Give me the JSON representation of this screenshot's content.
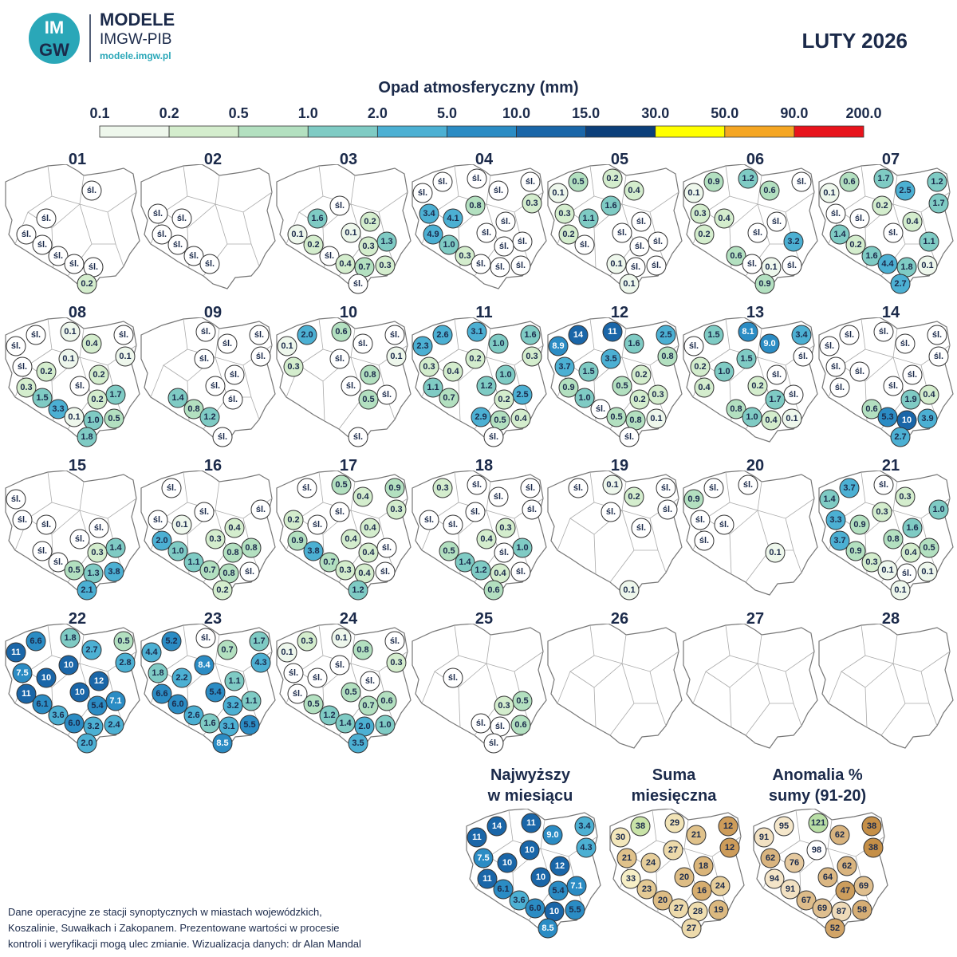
{
  "header": {
    "logo": [
      "IM",
      "GW"
    ],
    "brand": "MODELE",
    "org": "IMGW-PIB",
    "url": "modele.imgw.pl",
    "title": "LUTY 2026"
  },
  "legend": {
    "title": "Opad atmosferyczny (mm)",
    "labels": [
      "0.1",
      "0.2",
      "0.5",
      "1.0",
      "2.0",
      "5.0",
      "10.0",
      "15.0",
      "30.0",
      "50.0",
      "90.0",
      "200.0"
    ],
    "colors": [
      "#eef7ec",
      "#d4edcd",
      "#b3e0c0",
      "#7fcbc4",
      "#4cb0d3",
      "#2b8cc4",
      "#1a66a8",
      "#0c3f7a",
      "#ffff00",
      "#f5a623",
      "#e8141c"
    ]
  },
  "days": [
    {
      "label": "01",
      "stations": [
        null,
        null,
        null,
        null,
        "śl.",
        null,
        null,
        null,
        "śl.",
        null,
        "śl.",
        null,
        null,
        "śl.",
        null,
        "śl.",
        "śl.",
        "śl.",
        null,
        "0.2"
      ]
    },
    {
      "label": "02",
      "stations": [
        null,
        null,
        null,
        null,
        null,
        null,
        null,
        "śl.",
        "śl.",
        null,
        "śl.",
        null,
        null,
        "śl.",
        null,
        "śl.",
        "śl.",
        null,
        null,
        null
      ]
    },
    {
      "label": "03",
      "stations": [
        null,
        null,
        null,
        null,
        null,
        "śl.",
        null,
        null,
        "1.6",
        "0.2",
        "0.1",
        "0.1",
        "1.3",
        "0.2",
        "0.3",
        "śl.",
        "0.4",
        "0.7",
        "0.3",
        "śl."
      ]
    },
    {
      "label": "04",
      "stations": [
        "śl.",
        "śl.",
        "śl.",
        "śl.",
        "śl.",
        "0.8",
        "0.3",
        "3.4",
        "4.1",
        "śl.",
        "4.9",
        "śl.",
        "śl.",
        "1.0",
        "śl.",
        "0.3",
        "śl.",
        "śl.",
        "śl.",
        null
      ]
    },
    {
      "label": "05",
      "stations": [
        "0.5",
        "0.2",
        null,
        "0.1",
        "0.4",
        "1.6",
        null,
        "0.3",
        "1.1",
        "śl.",
        "0.2",
        "śl.",
        "śl.",
        "śl.",
        "śl.",
        null,
        "0.1",
        "śl.",
        "śl.",
        "0.1"
      ]
    },
    {
      "label": "06",
      "stations": [
        "0.9",
        "1.2",
        "śl.",
        "0.1",
        "0.6",
        null,
        null,
        "0.3",
        "0.4",
        "śl.",
        "0.2",
        "śl.",
        "3.2",
        null,
        null,
        "0.6",
        "śl.",
        "0.1",
        "śl.",
        "0.9"
      ]
    },
    {
      "label": "07",
      "stations": [
        "0.6",
        "1.7",
        "1.2",
        "0.1",
        "2.5",
        "0.2",
        "1.7",
        "śl.",
        "śl.",
        "0.4",
        "1.4",
        "śl.",
        "1.1",
        "0.2",
        null,
        "1.6",
        "4.4",
        "1.8",
        "0.1",
        "2.7"
      ]
    },
    {
      "label": "08",
      "stations": [
        "śl.",
        "0.1",
        "śl.",
        "śl.",
        "0.4",
        "0.1",
        "0.1",
        "śl.",
        "0.2",
        "0.2",
        "0.3",
        "śl.",
        "1.7",
        "1.5",
        "0.2",
        "3.3",
        "0.1",
        "1.0",
        "0.5",
        "1.8"
      ]
    },
    {
      "label": "09",
      "stations": [
        null,
        "śl.",
        "śl.",
        null,
        "śl.",
        "śl.",
        "śl.",
        null,
        null,
        "śl.",
        null,
        "śl.",
        null,
        "1.4",
        "śl.",
        "0.8",
        "1.2",
        null,
        null,
        "śl."
      ]
    },
    {
      "label": "10",
      "stations": [
        "2.0",
        "0.6",
        "śl.",
        "0.1",
        "śl.",
        "śl.",
        "0.1",
        "0.3",
        null,
        "0.8",
        null,
        "śl.",
        "śl.",
        null,
        "0.5",
        null,
        null,
        null,
        null,
        "śl."
      ]
    },
    {
      "label": "11",
      "stations": [
        "2.6",
        "3.1",
        "1.6",
        "2.3",
        "1.0",
        "0.2",
        "0.3",
        "0.3",
        "0.4",
        "1.0",
        "1.1",
        "1.2",
        "2.5",
        "0.7",
        "0.2",
        null,
        "2.9",
        "0.5",
        "0.4",
        "śl."
      ]
    },
    {
      "label": "12",
      "stations": [
        "14",
        "11",
        "2.5",
        "8.9",
        "1.6",
        "3.5",
        "0.8",
        "3.7",
        "1.5",
        "0.2",
        "0.9",
        "0.5",
        "0.3",
        "1.0",
        "0.2",
        "śl.",
        "0.5",
        "0.8",
        "0.1",
        "śl."
      ]
    },
    {
      "label": "13",
      "stations": [
        "1.5",
        "8.1",
        "3.4",
        "śl.",
        "9.0",
        "1.5",
        "śl.",
        "0.2",
        "1.0",
        "śl.",
        "0.4",
        "0.2",
        "śl.",
        null,
        "1.7",
        "0.8",
        "1.0",
        "0.4",
        "0.1",
        null
      ]
    },
    {
      "label": "14",
      "stations": [
        "śl.",
        "śl.",
        "śl.",
        "śl.",
        "śl.",
        null,
        "śl.",
        "śl.",
        "śl.",
        "śl.",
        "śl.",
        "śl.",
        "0.4",
        null,
        "1.9",
        "0.6",
        "5.3",
        "10",
        "3.9",
        "2.7"
      ]
    },
    {
      "label": "15",
      "stations": [
        null,
        null,
        null,
        "śl.",
        null,
        null,
        null,
        "śl.",
        "śl.",
        "śl.",
        null,
        "śl.",
        "1.4",
        "śl.",
        "0.3",
        "śl.",
        "0.5",
        "1.3",
        "3.8",
        "2.1"
      ]
    },
    {
      "label": "16",
      "stations": [
        "śl.",
        null,
        null,
        null,
        null,
        "śl.",
        "śl.",
        "śl.",
        "0.1",
        "0.4",
        "2.0",
        "0.3",
        "0.8",
        "1.0",
        "0.8",
        "1.1",
        "0.7",
        "0.8",
        "śl.",
        "0.2"
      ]
    },
    {
      "label": "17",
      "stations": [
        "śl.",
        "0.5",
        "0.9",
        null,
        "0.4",
        "śl.",
        "0.3",
        "0.2",
        "śl.",
        "0.4",
        "0.9",
        "0.4",
        "śl.",
        "3.8",
        "0.4",
        "0.7",
        "0.3",
        "0.4",
        "śl.",
        "1.2"
      ]
    },
    {
      "label": "18",
      "stations": [
        "0.3",
        "śl.",
        "śl.",
        null,
        "śl.",
        "śl.",
        "śl.",
        "śl.",
        "śl.",
        "0.3",
        null,
        "0.4",
        "1.0",
        "0.5",
        "śl.",
        "1.4",
        "1.2",
        "0.4",
        "śl.",
        "0.6"
      ]
    },
    {
      "label": "19",
      "stations": [
        "śl.",
        "0.1",
        "śl.",
        null,
        "0.2",
        "śl.",
        "śl.",
        null,
        null,
        "śl.",
        null,
        null,
        null,
        null,
        null,
        null,
        null,
        null,
        null,
        "0.1"
      ]
    },
    {
      "label": "20",
      "stations": [
        "śl.",
        "śl.",
        null,
        "0.9",
        null,
        null,
        null,
        "śl.",
        "śl.",
        null,
        "śl.",
        null,
        null,
        null,
        "0.1",
        null,
        null,
        null,
        null,
        null
      ]
    },
    {
      "label": "21",
      "stations": [
        "3.7",
        "śl.",
        null,
        "1.4",
        "0.3",
        "0.3",
        "1.0",
        "3.3",
        "0.9",
        "1.6",
        "3.7",
        "0.8",
        "0.5",
        "0.9",
        "0.4",
        "0.3",
        "0.1",
        "śl.",
        "0.1",
        "0.1"
      ]
    },
    {
      "label": "22",
      "stations": [
        "6.6",
        "1.8",
        "0.5",
        "11",
        "2.7",
        "10",
        "2.8",
        "7.5",
        "10",
        "12",
        "11",
        "10",
        "7.1",
        "6.1",
        "5.4",
        "3.6",
        "6.0",
        "3.2",
        "2.4",
        "2.0"
      ]
    },
    {
      "label": "23",
      "stations": [
        "5.2",
        "śl.",
        "1.7",
        "4.4",
        "0.7",
        "8.4",
        "4.3",
        "1.8",
        "2.2",
        "1.1",
        "6.6",
        "5.4",
        "1.1",
        "6.0",
        "3.2",
        "2.6",
        "1.6",
        "3.1",
        "5.5",
        "8.5"
      ]
    },
    {
      "label": "24",
      "stations": [
        "0.3",
        "0.1",
        "śl.",
        "0.1",
        "0.8",
        "śl.",
        "0.3",
        "śl.",
        "śl.",
        "śl.",
        "śl.",
        "0.5",
        "0.6",
        "0.5",
        "0.7",
        "1.2",
        "1.4",
        "2.0",
        "1.0",
        "3.5"
      ]
    },
    {
      "label": "25",
      "stations": [
        null,
        null,
        null,
        null,
        null,
        null,
        null,
        null,
        "śl.",
        null,
        null,
        null,
        "0.5",
        null,
        "0.3",
        null,
        "śl.",
        "śl.",
        "0.6",
        "śl."
      ]
    },
    {
      "label": "26",
      "stations": []
    },
    {
      "label": "27",
      "stations": []
    },
    {
      "label": "28",
      "stations": []
    }
  ],
  "summaries": [
    {
      "kind": "max",
      "title": [
        "Najwyższy",
        "w miesiącu"
      ],
      "stations": [
        "14",
        "11",
        "3.4",
        "11",
        "9.0",
        "10",
        "4.3",
        "7.5",
        "10",
        "12",
        "11",
        "10",
        "7.1",
        "6.1",
        "5.4",
        "3.6",
        "6.0",
        "10",
        "5.5",
        "8.5"
      ]
    },
    {
      "kind": "sum",
      "title": [
        "Suma",
        "miesięczna"
      ],
      "stations": [
        38,
        29,
        12,
        30,
        21,
        27,
        12,
        21,
        24,
        18,
        33,
        20,
        24,
        23,
        16,
        20,
        27,
        28,
        19,
        27
      ]
    },
    {
      "kind": "anomaly",
      "title": [
        "Anomalia %",
        "sumy (91-20)"
      ],
      "stations": [
        95,
        121,
        38,
        91,
        62,
        98,
        38,
        62,
        76,
        62,
        94,
        64,
        69,
        91,
        47,
        67,
        69,
        87,
        58,
        52
      ]
    }
  ],
  "footer": [
    "Dane operacyjne ze stacji synoptycznych w miastach wojewódzkich,",
    "Koszalinie, Suwałkach i Zakopanem. Prezentowane wartości w procesie",
    "kontroli i weryfikacji mogą ulec zmianie. Wizualizacja danych: dr Alan Mandal"
  ]
}
